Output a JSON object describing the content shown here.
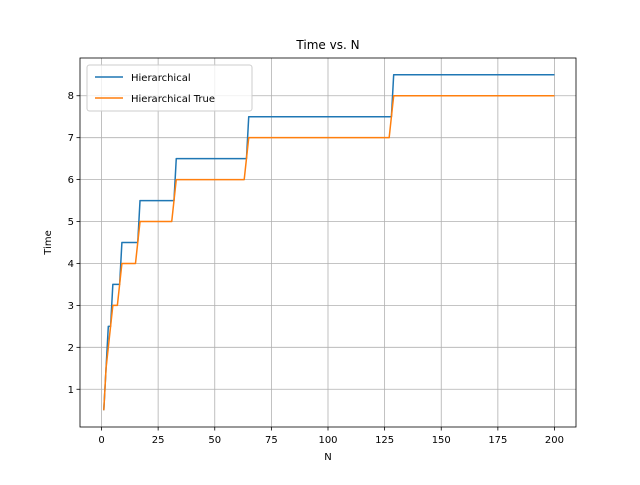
{
  "chart_data": {
    "type": "line",
    "title": "Time vs. N",
    "xlabel": "N",
    "ylabel": "Time",
    "xlim": [
      -9.5,
      209.5
    ],
    "ylim": [
      0.1,
      8.9
    ],
    "xticks": [
      0,
      25,
      50,
      75,
      100,
      125,
      150,
      175,
      200
    ],
    "yticks": [
      1,
      2,
      3,
      4,
      5,
      6,
      7,
      8
    ],
    "grid": true,
    "legend_position": "upper-left",
    "series": [
      {
        "name": "Hierarchical",
        "color": "#1f77b4",
        "x": [
          1,
          2,
          3,
          4,
          5,
          6,
          7,
          8,
          9,
          15,
          16,
          17,
          31,
          32,
          33,
          63,
          64,
          65,
          127,
          128,
          129,
          200
        ],
        "y": [
          0.5,
          1.5,
          2.5,
          2.5,
          3.5,
          3.5,
          3.5,
          3.5,
          4.5,
          4.5,
          4.5,
          5.5,
          5.5,
          5.5,
          6.5,
          6.5,
          6.5,
          7.5,
          7.5,
          7.5,
          8.5,
          8.5
        ]
      },
      {
        "name": "Hierarchical True",
        "color": "#ff7f0e",
        "x": [
          1,
          2,
          3,
          4,
          5,
          6,
          7,
          8,
          9,
          15,
          16,
          17,
          31,
          32,
          33,
          63,
          64,
          65,
          127,
          128,
          129,
          200
        ],
        "y": [
          0.5,
          1.5,
          2.0,
          2.5,
          3.0,
          3.0,
          3.0,
          3.5,
          4.0,
          4.0,
          4.5,
          5.0,
          5.0,
          5.5,
          6.0,
          6.0,
          6.5,
          7.0,
          7.0,
          7.5,
          8.0,
          8.0
        ]
      }
    ]
  }
}
